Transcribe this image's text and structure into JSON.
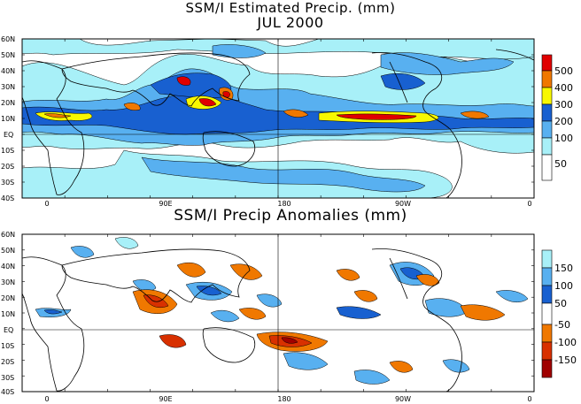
{
  "titles": {
    "top_main": "SSM/I Estimated Precip. (mm)",
    "top_sub": "JUL 2000",
    "bottom_main": "SSM/I Precip Anomalies (mm)"
  },
  "map_axes": {
    "lat_labels": [
      "60N",
      "50N",
      "40N",
      "30N",
      "20N",
      "10N",
      "EQ",
      "10S",
      "20S",
      "30S",
      "40S"
    ],
    "lon_labels": [
      "0",
      "90E",
      "180",
      "90W",
      "0"
    ]
  },
  "precip_legend": {
    "labels": [
      "500",
      "400",
      "300",
      "200",
      "100",
      "50"
    ],
    "colors": [
      "#e00000",
      "#f07800",
      "#f8f800",
      "#1860d0",
      "#58b0f0",
      "#a8f0f8",
      "#ffffff"
    ]
  },
  "anomaly_legend": {
    "labels": [
      "150",
      "100",
      "50",
      "-50",
      "-100",
      "-150"
    ],
    "colors": [
      "#a8f0f8",
      "#58b0f0",
      "#1860d0",
      "#ffffff",
      "#f07800",
      "#d83000",
      "#a00000"
    ]
  }
}
